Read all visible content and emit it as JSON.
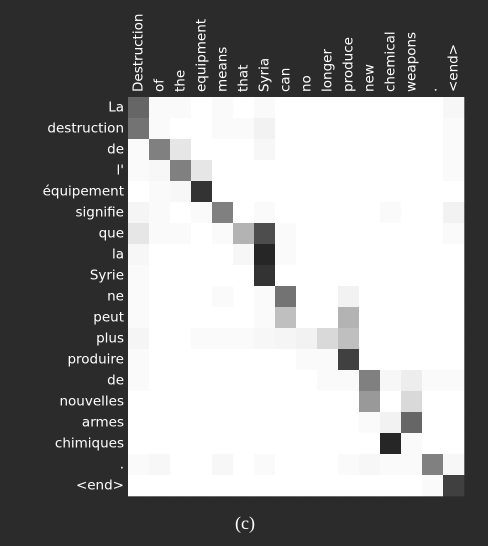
{
  "chart_data": {
    "type": "heatmap",
    "x": [
      "Destruction",
      "of",
      "the",
      "equipment",
      "means",
      "that",
      "Syria",
      "can",
      "no",
      "longer",
      "produce",
      "new",
      "chemical",
      "weapons",
      ".",
      "<end>"
    ],
    "y": [
      "La",
      "destruction",
      "de",
      "l'",
      "équipement",
      "signifie",
      "que",
      "la",
      "Syrie",
      "ne",
      "peut",
      "plus",
      "produire",
      "de",
      "nouvelles",
      "armes",
      "chimiques",
      ".",
      "<end>"
    ],
    "zlim": [
      0,
      1
    ],
    "values": [
      [
        0.6,
        0.02,
        0.02,
        0,
        0.02,
        0,
        0.02,
        0,
        0,
        0,
        0,
        0,
        0,
        0,
        0,
        0.03
      ],
      [
        0.55,
        0.02,
        0,
        0,
        0.02,
        0.02,
        0.05,
        0,
        0,
        0,
        0,
        0,
        0,
        0,
        0,
        0.02
      ],
      [
        0.02,
        0.5,
        0.1,
        0,
        0,
        0,
        0.03,
        0,
        0,
        0,
        0,
        0,
        0,
        0,
        0,
        0.02
      ],
      [
        0.02,
        0.03,
        0.5,
        0.1,
        0,
        0,
        0,
        0,
        0,
        0,
        0,
        0,
        0,
        0,
        0,
        0.02
      ],
      [
        0,
        0.02,
        0.03,
        0.8,
        0,
        0,
        0,
        0,
        0,
        0,
        0,
        0,
        0,
        0,
        0,
        0
      ],
      [
        0.04,
        0.02,
        0,
        0.02,
        0.5,
        0,
        0.02,
        0,
        0,
        0,
        0,
        0,
        0.02,
        0,
        0,
        0.05
      ],
      [
        0.1,
        0.02,
        0.02,
        0,
        0.02,
        0.3,
        0.7,
        0.02,
        0,
        0,
        0,
        0,
        0,
        0,
        0,
        0.02
      ],
      [
        0.03,
        0,
        0,
        0,
        0,
        0.03,
        0.85,
        0.02,
        0,
        0,
        0,
        0,
        0,
        0,
        0,
        0
      ],
      [
        0.02,
        0,
        0,
        0,
        0,
        0,
        0.8,
        0,
        0,
        0,
        0,
        0,
        0,
        0,
        0,
        0
      ],
      [
        0.02,
        0,
        0,
        0,
        0.02,
        0,
        0.02,
        0.55,
        0,
        0,
        0.05,
        0,
        0,
        0,
        0,
        0
      ],
      [
        0.02,
        0,
        0,
        0,
        0,
        0,
        0.02,
        0.25,
        0,
        0,
        0.3,
        0,
        0,
        0,
        0,
        0
      ],
      [
        0.04,
        0,
        0,
        0.02,
        0.02,
        0.02,
        0.03,
        0.04,
        0.05,
        0.15,
        0.25,
        0,
        0,
        0,
        0,
        0
      ],
      [
        0.02,
        0,
        0,
        0,
        0,
        0,
        0,
        0,
        0.02,
        0.02,
        0.75,
        0,
        0,
        0,
        0,
        0
      ],
      [
        0.02,
        0,
        0,
        0,
        0,
        0,
        0,
        0,
        0,
        0.02,
        0.02,
        0.5,
        0.03,
        0.07,
        0.02,
        0.02
      ],
      [
        0,
        0,
        0,
        0,
        0,
        0,
        0,
        0,
        0,
        0,
        0,
        0.4,
        0,
        0.15,
        0,
        0
      ],
      [
        0,
        0,
        0,
        0,
        0,
        0,
        0,
        0,
        0,
        0,
        0,
        0.02,
        0.05,
        0.6,
        0,
        0
      ],
      [
        0,
        0,
        0,
        0,
        0,
        0,
        0,
        0,
        0,
        0,
        0,
        0,
        0.85,
        0.02,
        0,
        0
      ],
      [
        0.02,
        0.03,
        0,
        0,
        0.03,
        0,
        0.02,
        0,
        0,
        0,
        0.02,
        0.03,
        0.02,
        0.02,
        0.5,
        0.03
      ],
      [
        0,
        0,
        0,
        0,
        0,
        0,
        0,
        0,
        0,
        0,
        0,
        0,
        0,
        0,
        0.02,
        0.75
      ]
    ]
  },
  "caption": "(c)"
}
